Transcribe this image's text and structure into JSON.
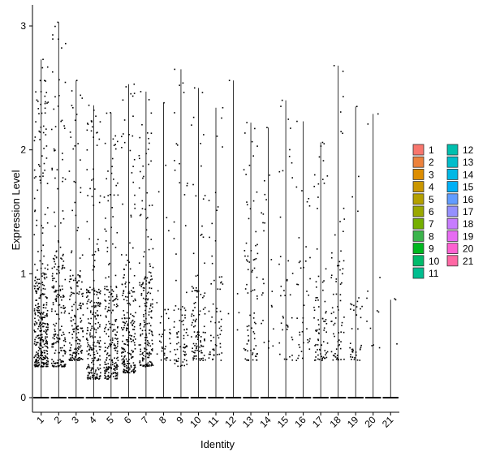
{
  "chart_data": {
    "type": "violin-jitter",
    "title": "",
    "xlabel": "Identity",
    "ylabel": "Expression Level",
    "ylim": [
      0,
      3
    ],
    "yticks": [
      0,
      1,
      2,
      3
    ],
    "categories": [
      "1",
      "2",
      "3",
      "4",
      "5",
      "6",
      "7",
      "8",
      "9",
      "10",
      "11",
      "12",
      "13",
      "14",
      "15",
      "16",
      "17",
      "18",
      "19",
      "20",
      "21"
    ],
    "max_values": [
      2.73,
      3.03,
      2.56,
      2.36,
      2.3,
      2.53,
      2.47,
      2.38,
      2.65,
      2.5,
      2.34,
      2.56,
      2.22,
      2.18,
      2.4,
      2.23,
      2.06,
      2.68,
      2.35,
      2.29,
      0.79
    ],
    "point_density": [
      360,
      220,
      180,
      230,
      230,
      220,
      200,
      40,
      80,
      110,
      60,
      5,
      80,
      25,
      40,
      40,
      80,
      70,
      40,
      12,
      3
    ],
    "typical_range": [
      [
        0.25,
        1.05
      ],
      [
        0.25,
        1.2
      ],
      [
        0.3,
        1.0
      ],
      [
        0.15,
        0.9
      ],
      [
        0.15,
        0.9
      ],
      [
        0.2,
        1.0
      ],
      [
        0.25,
        1.0
      ],
      [
        0.3,
        0.9
      ],
      [
        0.25,
        0.8
      ],
      [
        0.3,
        0.9
      ],
      [
        0.3,
        1.0
      ],
      [
        0.5,
        1.0
      ],
      [
        0.3,
        1.2
      ],
      [
        0.4,
        1.4
      ],
      [
        0.3,
        1.2
      ],
      [
        0.3,
        1.2
      ],
      [
        0.3,
        1.1
      ],
      [
        0.3,
        1.2
      ],
      [
        0.3,
        0.9
      ],
      [
        0.4,
        1.0
      ],
      [
        0.4,
        0.8
      ]
    ],
    "legend": {
      "placement": "right",
      "entries": [
        {
          "label": "1",
          "color": "#F8766D"
        },
        {
          "label": "2",
          "color": "#EC823C"
        },
        {
          "label": "3",
          "color": "#DD8D00"
        },
        {
          "label": "4",
          "color": "#CA9700"
        },
        {
          "label": "5",
          "color": "#B4A000"
        },
        {
          "label": "6",
          "color": "#9AA800"
        },
        {
          "label": "7",
          "color": "#75AF00"
        },
        {
          "label": "8",
          "color": "#3BB44B"
        },
        {
          "label": "9",
          "color": "#00B81F"
        },
        {
          "label": "10",
          "color": "#00BB6B"
        },
        {
          "label": "11",
          "color": "#00BE8F"
        },
        {
          "label": "12",
          "color": "#00BFAE"
        },
        {
          "label": "13",
          "color": "#00BDCB"
        },
        {
          "label": "14",
          "color": "#00B8E5"
        },
        {
          "label": "15",
          "color": "#00B0F6"
        },
        {
          "label": "16",
          "color": "#619CFF"
        },
        {
          "label": "17",
          "color": "#9590FF"
        },
        {
          "label": "18",
          "color": "#C77CFF"
        },
        {
          "label": "19",
          "color": "#E76BF3"
        },
        {
          "label": "20",
          "color": "#FD61D1"
        },
        {
          "label": "21",
          "color": "#FF67A4"
        }
      ]
    }
  }
}
